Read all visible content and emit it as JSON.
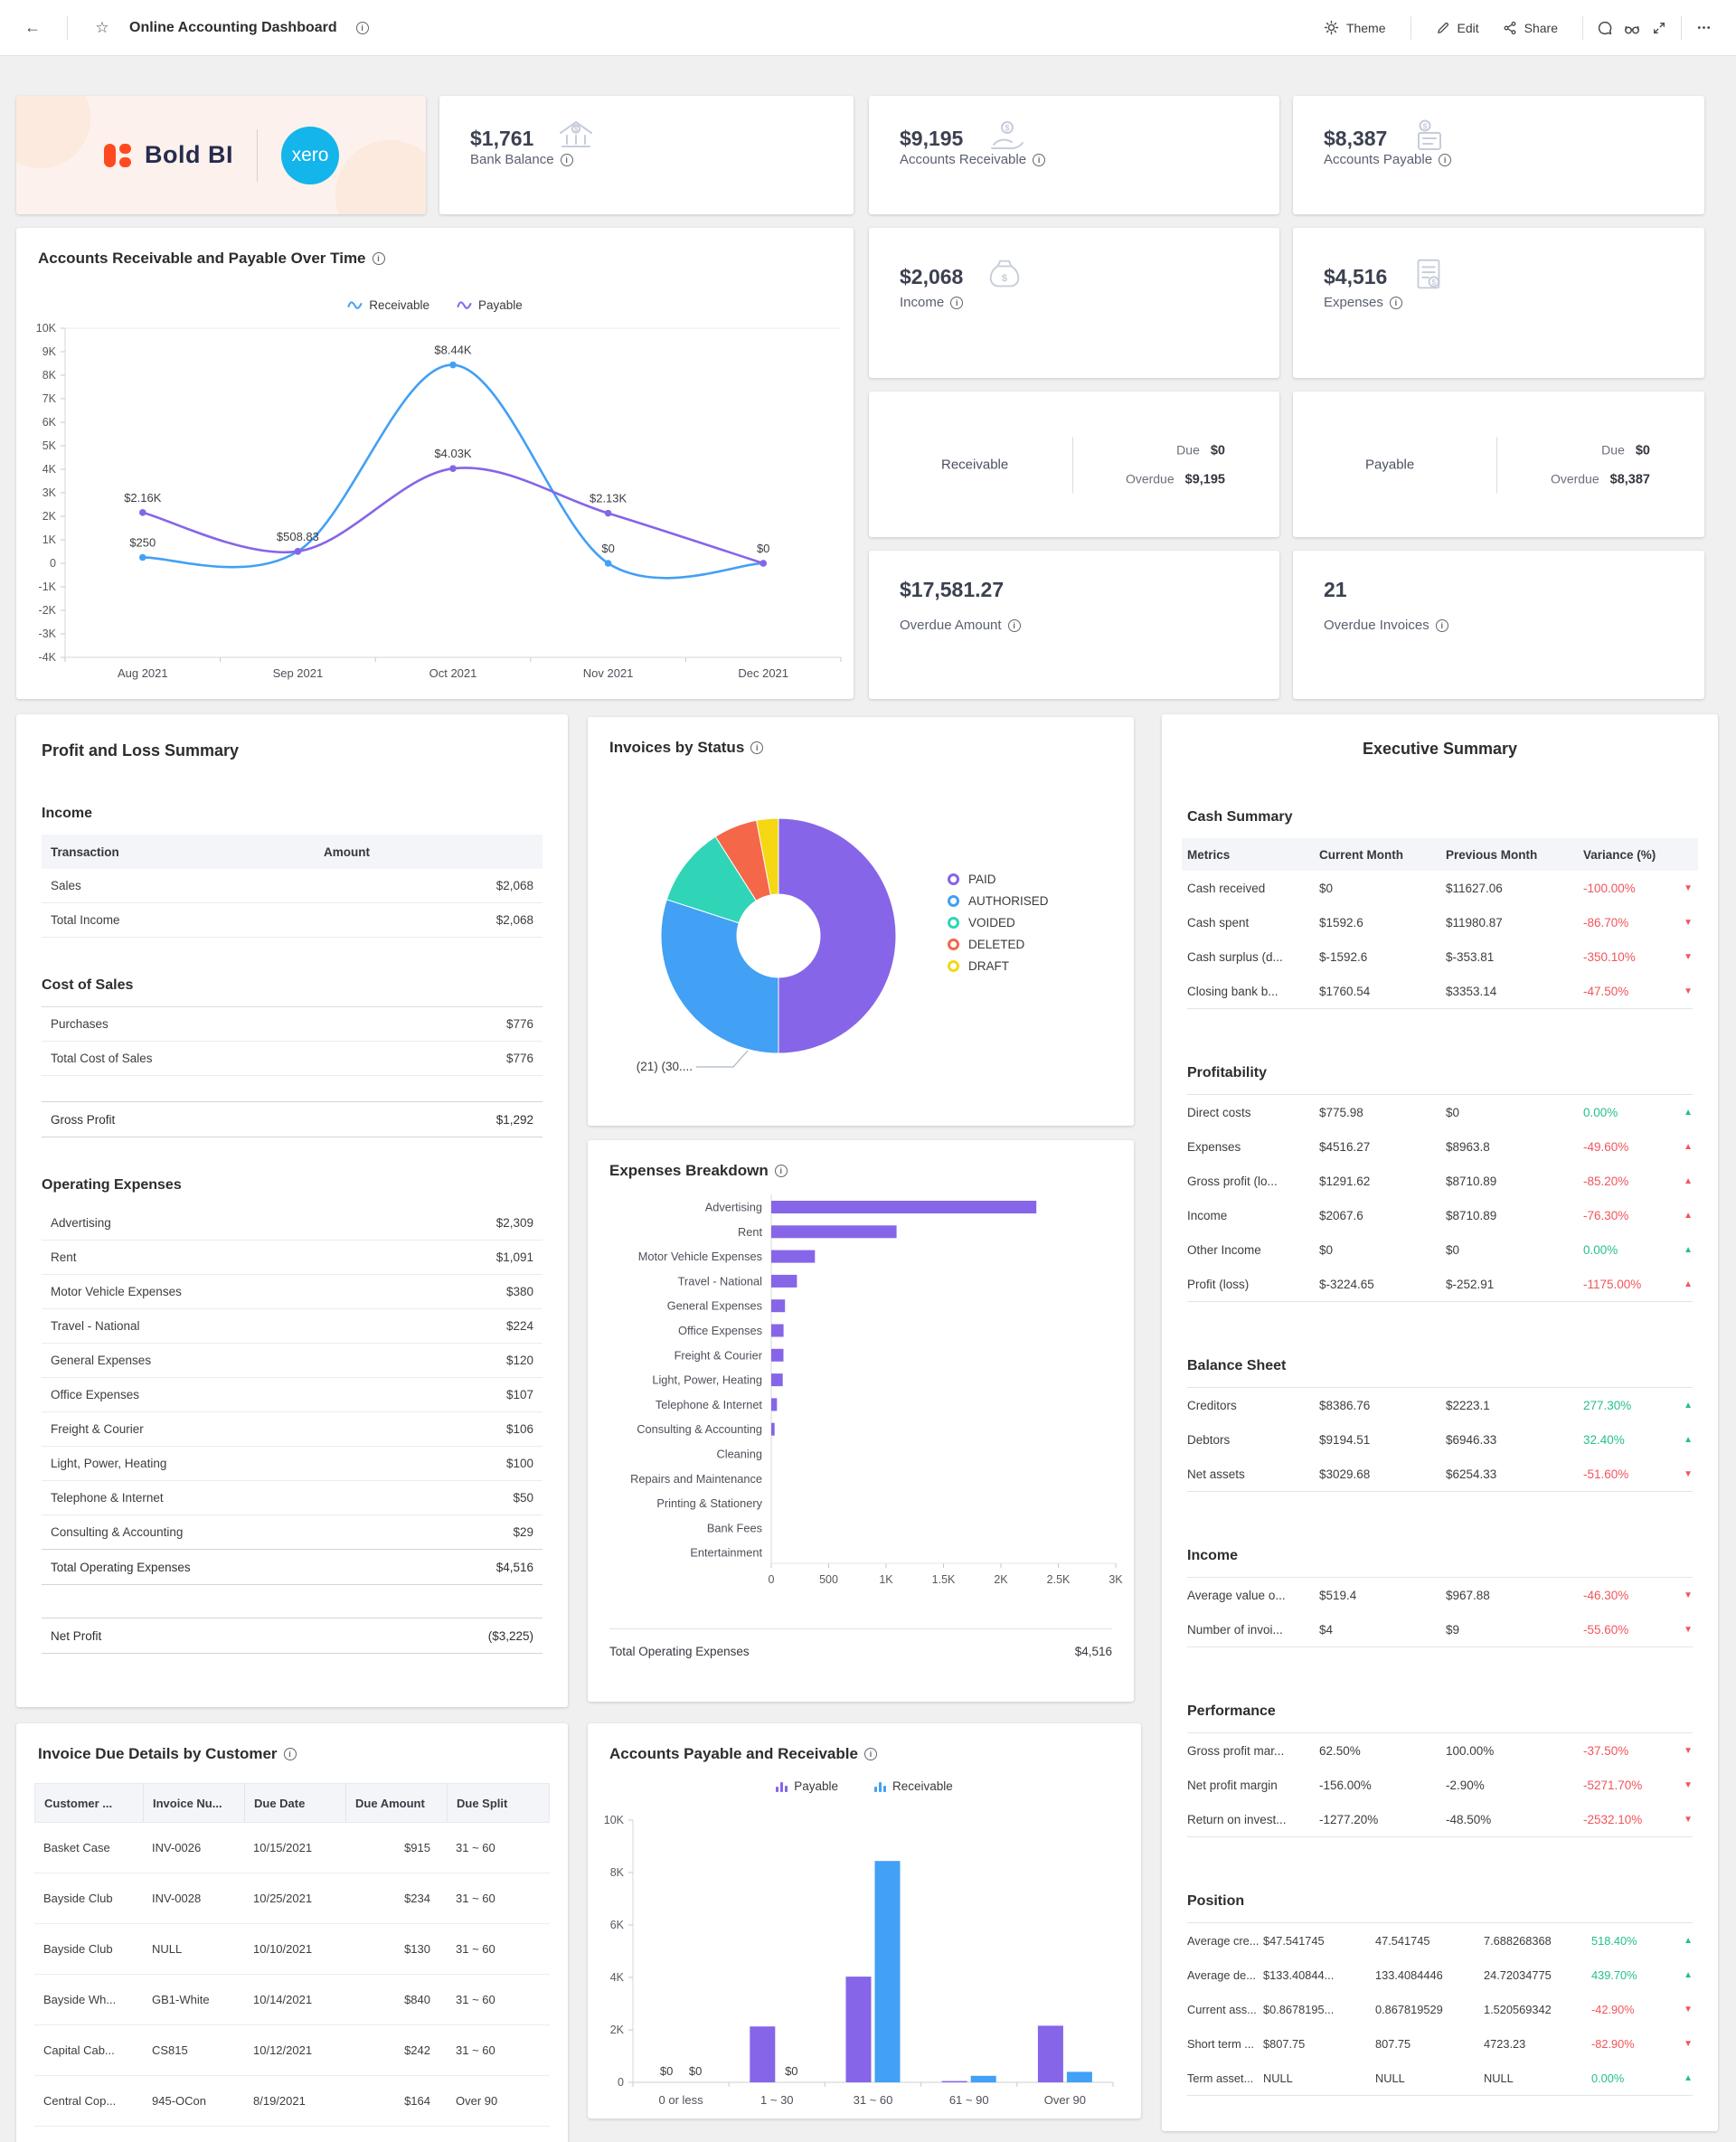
{
  "topbar": {
    "title": "Online Accounting Dashboard",
    "actions": {
      "theme": "Theme",
      "edit": "Edit",
      "share": "Share"
    }
  },
  "logo_card": {
    "brand": "Bold BI",
    "partner": "xero"
  },
  "kpis": {
    "bank_balance": {
      "value": "$1,761",
      "label": "Bank Balance"
    },
    "accounts_receivable": {
      "value": "$9,195",
      "label": "Accounts Receivable"
    },
    "accounts_payable": {
      "value": "$8,387",
      "label": "Accounts Payable"
    },
    "income": {
      "value": "$2,068",
      "label": "Income"
    },
    "expenses": {
      "value": "$4,516",
      "label": "Expenses"
    },
    "receivable_summary": {
      "label": "Receivable",
      "due_label": "Due",
      "due_value": "$0",
      "overdue_label": "Overdue",
      "overdue_value": "$9,195"
    },
    "payable_summary": {
      "label": "Payable",
      "due_label": "Due",
      "due_value": "$0",
      "overdue_label": "Overdue",
      "overdue_value": "$8,387"
    },
    "overdue_amount": {
      "value": "$17,581.27",
      "label": "Overdue Amount"
    },
    "overdue_invoices": {
      "value": "21",
      "label": "Overdue Invoices"
    }
  },
  "chart_data": [
    {
      "id": "ar_ap_over_time",
      "type": "line",
      "title": "Accounts Receivable and Payable Over Time",
      "categories": [
        "Aug 2021",
        "Sep 2021",
        "Oct 2021",
        "Nov 2021",
        "Dec 2021"
      ],
      "series": [
        {
          "name": "Receivable",
          "color": "#42A0F5",
          "values": [
            250,
            508.83,
            8440,
            0,
            0
          ],
          "labels": [
            "$250",
            "$508.83",
            "$8.44K",
            "$0",
            "$0"
          ]
        },
        {
          "name": "Payable",
          "color": "#8665E8",
          "values": [
            2160,
            508.83,
            4030,
            2130,
            0
          ],
          "labels": [
            "$2.16K",
            "",
            "$4.03K",
            "$2.13K",
            ""
          ]
        }
      ],
      "ylim": [
        -4000,
        10000
      ],
      "yticks": [
        [
          10000,
          "10K"
        ],
        [
          9000,
          "9K"
        ],
        [
          8000,
          "8K"
        ],
        [
          7000,
          "7K"
        ],
        [
          6000,
          "6K"
        ],
        [
          5000,
          "5K"
        ],
        [
          4000,
          "4K"
        ],
        [
          3000,
          "3K"
        ],
        [
          2000,
          "2K"
        ],
        [
          1000,
          "1K"
        ],
        [
          0,
          "0"
        ],
        [
          -1000,
          "-1K"
        ],
        [
          -2000,
          "-2K"
        ],
        [
          -3000,
          "-3K"
        ],
        [
          -4000,
          "-4K"
        ]
      ],
      "legend_position": "top"
    },
    {
      "id": "invoices_by_status",
      "type": "pie",
      "title": "Invoices by Status",
      "slices": [
        {
          "label": "PAID",
          "pct": 50,
          "color": "#8665E8"
        },
        {
          "label": "AUTHORISED",
          "pct": 30,
          "color": "#42A0F5"
        },
        {
          "label": "VOIDED",
          "pct": 11,
          "color": "#2FD5B6"
        },
        {
          "label": "DELETED",
          "pct": 6,
          "color": "#F46749"
        },
        {
          "label": "DRAFT",
          "pct": 3,
          "color": "#F5D714"
        }
      ],
      "callout_label": "(21) (30....",
      "legend_position": "right"
    },
    {
      "id": "expenses_breakdown",
      "type": "bar",
      "orientation": "horizontal",
      "title": "Expenses Breakdown",
      "categories": [
        "Advertising",
        "Rent",
        "Motor Vehicle Expenses",
        "Travel - National",
        "General Expenses",
        "Office Expenses",
        "Freight & Courier",
        "Light, Power, Heating",
        "Telephone & Internet",
        "Consulting & Accounting",
        "Cleaning",
        "Repairs and Maintenance",
        "Printing & Stationery",
        "Bank Fees",
        "Entertainment"
      ],
      "values": [
        2309,
        1091,
        380,
        224,
        120,
        107,
        106,
        100,
        50,
        29,
        0,
        0,
        0,
        0,
        0
      ],
      "color": "#8665E8",
      "xlim": [
        0,
        3000
      ],
      "xticks": [
        [
          0,
          "0"
        ],
        [
          500,
          "500"
        ],
        [
          1000,
          "1K"
        ],
        [
          1500,
          "1.5K"
        ],
        [
          2000,
          "2K"
        ],
        [
          2500,
          "2.5K"
        ],
        [
          3000,
          "3K"
        ]
      ],
      "footer": {
        "label": "Total Operating Expenses",
        "value": "$4,516"
      }
    },
    {
      "id": "ap_ar_aging",
      "type": "bar",
      "title": "Accounts Payable and Receivable",
      "categories": [
        "0 or less",
        "1 ~ 30",
        "31 ~ 60",
        "61 ~ 90",
        "Over 90"
      ],
      "series": [
        {
          "name": "Payable",
          "color": "#8665E8",
          "values": [
            0,
            2130,
            4030,
            50,
            2160
          ],
          "labels": [
            "$0",
            "",
            "",
            "",
            ""
          ]
        },
        {
          "name": "Receivable",
          "color": "#42A0F5",
          "values": [
            0,
            0,
            8440,
            250,
            400
          ],
          "labels": [
            "$0",
            "$0",
            "",
            "",
            ""
          ]
        }
      ],
      "ylim": [
        0,
        10000
      ],
      "yticks": [
        [
          0,
          "0"
        ],
        [
          2000,
          "2K"
        ],
        [
          4000,
          "4K"
        ],
        [
          6000,
          "6K"
        ],
        [
          8000,
          "8K"
        ],
        [
          10000,
          "10K"
        ]
      ],
      "legend_position": "top"
    }
  ],
  "pnl": {
    "title": "Profit and Loss Summary",
    "income": {
      "title": "Income",
      "header": [
        "Transaction",
        "Amount"
      ],
      "rows": [
        [
          "Sales",
          "$2,068"
        ],
        [
          "Total Income",
          "$2,068"
        ]
      ]
    },
    "cost_of_sales": {
      "title": "Cost of Sales",
      "rows": [
        [
          "Purchases",
          "$776"
        ],
        [
          "Total Cost of Sales",
          "$776"
        ]
      ]
    },
    "gross_profit": {
      "label": "Gross Profit",
      "value": "$1,292"
    },
    "operating_expenses": {
      "title": "Operating Expenses",
      "rows": [
        [
          "Advertising",
          "$2,309"
        ],
        [
          "Rent",
          "$1,091"
        ],
        [
          "Motor Vehicle Expenses",
          "$380"
        ],
        [
          "Travel - National",
          "$224"
        ],
        [
          "General Expenses",
          "$120"
        ],
        [
          "Office Expenses",
          "$107"
        ],
        [
          "Freight & Courier",
          "$106"
        ],
        [
          "Light, Power, Heating",
          "$100"
        ],
        [
          "Telephone & Internet",
          "$50"
        ],
        [
          "Consulting & Accounting",
          "$29"
        ]
      ]
    },
    "total_operating": {
      "label": "Total Operating Expenses",
      "value": "$4,516"
    },
    "net_profit": {
      "label": "Net Profit",
      "value": "($3,225)"
    }
  },
  "executive": {
    "title": "Executive Summary",
    "sections": [
      {
        "title": "Cash Summary",
        "header": [
          "Metrics",
          "Current Month",
          "Previous Month",
          "Variance (%)"
        ],
        "rows": [
          {
            "label": "Cash received",
            "current": "$0",
            "previous": "$11627.06",
            "variance": "-100.00%",
            "dir": "down",
            "tone": "red"
          },
          {
            "label": "Cash spent",
            "current": "$1592.6",
            "previous": "$11980.87",
            "variance": "-86.70%",
            "dir": "down",
            "tone": "red"
          },
          {
            "label": "Cash surplus (d...",
            "current": "$-1592.6",
            "previous": "$-353.81",
            "variance": "-350.10%",
            "dir": "down",
            "tone": "red"
          },
          {
            "label": "Closing bank b...",
            "current": "$1760.54",
            "previous": "$3353.14",
            "variance": "-47.50%",
            "dir": "down",
            "tone": "red"
          }
        ]
      },
      {
        "title": "Profitability",
        "rows": [
          {
            "label": "Direct costs",
            "current": "$775.98",
            "previous": "$0",
            "variance": "0.00%",
            "dir": "up",
            "tone": "green"
          },
          {
            "label": "Expenses",
            "current": "$4516.27",
            "previous": "$8963.8",
            "variance": "-49.60%",
            "dir": "up",
            "tone": "red"
          },
          {
            "label": "Gross profit (lo...",
            "current": "$1291.62",
            "previous": "$8710.89",
            "variance": "-85.20%",
            "dir": "up",
            "tone": "red"
          },
          {
            "label": "Income",
            "current": "$2067.6",
            "previous": "$8710.89",
            "variance": "-76.30%",
            "dir": "up",
            "tone": "red"
          },
          {
            "label": "Other Income",
            "current": "$0",
            "previous": "$0",
            "variance": "0.00%",
            "dir": "up",
            "tone": "green"
          },
          {
            "label": "Profit (loss)",
            "current": "$-3224.65",
            "previous": "$-252.91",
            "variance": "-1175.00%",
            "dir": "up",
            "tone": "red"
          }
        ]
      },
      {
        "title": "Balance Sheet",
        "rows": [
          {
            "label": "Creditors",
            "current": "$8386.76",
            "previous": "$2223.1",
            "variance": "277.30%",
            "dir": "up",
            "tone": "green"
          },
          {
            "label": "Debtors",
            "current": "$9194.51",
            "previous": "$6946.33",
            "variance": "32.40%",
            "dir": "up",
            "tone": "green"
          },
          {
            "label": "Net assets",
            "current": "$3029.68",
            "previous": "$6254.33",
            "variance": "-51.60%",
            "dir": "down",
            "tone": "red"
          }
        ]
      },
      {
        "title": "Income",
        "rows": [
          {
            "label": "Average value o...",
            "current": "$519.4",
            "previous": "$967.88",
            "variance": "-46.30%",
            "dir": "down",
            "tone": "red"
          },
          {
            "label": "Number of invoi...",
            "current": "$4",
            "previous": "$9",
            "variance": "-55.60%",
            "dir": "down",
            "tone": "red"
          }
        ]
      },
      {
        "title": "Performance",
        "rows": [
          {
            "label": "Gross profit mar...",
            "current": "62.50%",
            "previous": "100.00%",
            "variance": "-37.50%",
            "dir": "down",
            "tone": "red"
          },
          {
            "label": "Net profit margin",
            "current": "-156.00%",
            "previous": "-2.90%",
            "variance": "-5271.70%",
            "dir": "down",
            "tone": "red"
          },
          {
            "label": "Return on invest...",
            "current": "-1277.20%",
            "previous": "-48.50%",
            "variance": "-2532.10%",
            "dir": "down",
            "tone": "red"
          }
        ]
      },
      {
        "title": "Position",
        "wide": true,
        "rows": [
          {
            "label": "Average cre...",
            "current": "$47.541745",
            "previous": "47.541745",
            "extra": "7.688268368",
            "variance": "518.40%",
            "dir": "up",
            "tone": "green"
          },
          {
            "label": "Average de...",
            "current": "$133.40844...",
            "previous": "133.4084446",
            "extra": "24.72034775",
            "variance": "439.70%",
            "dir": "up",
            "tone": "green"
          },
          {
            "label": "Current ass...",
            "current": "$0.8678195...",
            "previous": "0.867819529",
            "extra": "1.520569342",
            "variance": "-42.90%",
            "dir": "down",
            "tone": "red"
          },
          {
            "label": "Short term ...",
            "current": "$807.75",
            "previous": "807.75",
            "extra": "4723.23",
            "variance": "-82.90%",
            "dir": "down",
            "tone": "red"
          },
          {
            "label": "Term asset...",
            "current": "NULL",
            "previous": "NULL",
            "extra": "NULL",
            "variance": "0.00%",
            "dir": "up",
            "tone": "green"
          }
        ]
      }
    ]
  },
  "invoice_table": {
    "title": "Invoice Due Details by Customer",
    "columns": [
      "Customer ...",
      "Invoice Nu...",
      "Due Date",
      "Due Amount",
      "Due Split"
    ],
    "rows": [
      {
        "customer": "Basket Case",
        "invoice": "INV-0026",
        "due_date": "10/15/2021",
        "due_amount": "$915",
        "due_split": "31 ~ 60",
        "split_tone": "orange"
      },
      {
        "customer": "Bayside Club",
        "invoice": "INV-0028",
        "due_date": "10/25/2021",
        "due_amount": "$234",
        "due_split": "31 ~ 60",
        "split_tone": "orange"
      },
      {
        "customer": "Bayside Club",
        "invoice": "NULL",
        "due_date": "10/10/2021",
        "due_amount": "$130",
        "due_split": "31 ~ 60",
        "split_tone": "orange"
      },
      {
        "customer": "Bayside Wh...",
        "invoice": "GB1-White",
        "due_date": "10/14/2021",
        "due_amount": "$840",
        "due_split": "31 ~ 60",
        "split_tone": "orange"
      },
      {
        "customer": "Capital Cab...",
        "invoice": "CS815",
        "due_date": "10/12/2021",
        "due_amount": "$242",
        "due_split": "31 ~ 60",
        "split_tone": "orange"
      },
      {
        "customer": "Central Cop...",
        "invoice": "945-OCon",
        "due_date": "8/19/2021",
        "due_amount": "$164",
        "due_split": "Over 90",
        "split_tone": "dark"
      }
    ]
  },
  "colors": {
    "receivable": "#42A0F5",
    "payable": "#8665E8",
    "voided": "#2FD5B6",
    "deleted": "#F46749",
    "draft": "#F5D714",
    "variance_up": "#26BE8D",
    "variance_down": "#F2545B",
    "due_split_orange": "#F2794B",
    "xero_blue": "#13B5EA",
    "brand_orange": "#FF4A1F"
  }
}
